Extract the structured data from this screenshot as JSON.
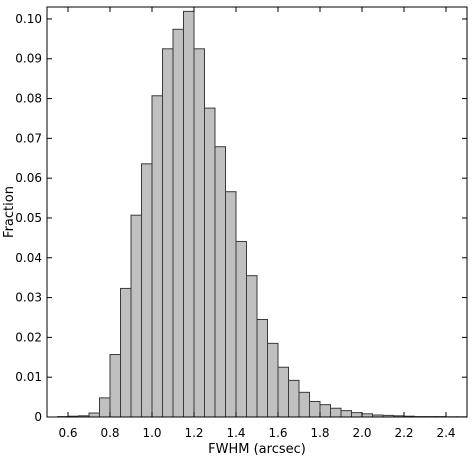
{
  "chart_data": {
    "type": "bar",
    "title": "",
    "xlabel": "FWHM (arcsec)",
    "ylabel": "Fraction",
    "xlim": [
      0.5,
      2.5
    ],
    "ylim": [
      0,
      0.103
    ],
    "bin_width": 0.05,
    "x_ticks": [
      0.6,
      0.8,
      1.0,
      1.2,
      1.4,
      1.6,
      1.8,
      2.0,
      2.2,
      2.4
    ],
    "x_tick_labels": [
      "0.6",
      "0.8",
      "1.0",
      "1.2",
      "1.4",
      "1.6",
      "1.8",
      "2.0",
      "2.2",
      "2.4"
    ],
    "y_ticks": [
      0,
      0.01,
      0.02,
      0.03,
      0.04,
      0.05,
      0.06,
      0.07,
      0.08,
      0.09,
      0.1
    ],
    "y_tick_labels": [
      "0",
      "0.01",
      "0.02",
      "0.03",
      "0.04",
      "0.05",
      "0.06",
      "0.07",
      "0.08",
      "0.09",
      "0.10"
    ],
    "grid": false,
    "legend": "none",
    "colors": {
      "bar_fill": "#c0c0c0",
      "bar_edge": "#3a3a3a",
      "axis": "#000000"
    },
    "bins": [
      {
        "x0": 0.55,
        "value": 0.0001
      },
      {
        "x0": 0.6,
        "value": 0.0002
      },
      {
        "x0": 0.65,
        "value": 0.0003
      },
      {
        "x0": 0.7,
        "value": 0.001
      },
      {
        "x0": 0.75,
        "value": 0.0048
      },
      {
        "x0": 0.8,
        "value": 0.0157
      },
      {
        "x0": 0.85,
        "value": 0.0323
      },
      {
        "x0": 0.9,
        "value": 0.0507
      },
      {
        "x0": 0.95,
        "value": 0.0636
      },
      {
        "x0": 1.0,
        "value": 0.0807
      },
      {
        "x0": 1.05,
        "value": 0.0925
      },
      {
        "x0": 1.1,
        "value": 0.0974
      },
      {
        "x0": 1.15,
        "value": 0.1019
      },
      {
        "x0": 1.2,
        "value": 0.0925
      },
      {
        "x0": 1.25,
        "value": 0.0776
      },
      {
        "x0": 1.3,
        "value": 0.0679
      },
      {
        "x0": 1.35,
        "value": 0.0566
      },
      {
        "x0": 1.4,
        "value": 0.0441
      },
      {
        "x0": 1.45,
        "value": 0.0355
      },
      {
        "x0": 1.5,
        "value": 0.0245
      },
      {
        "x0": 1.55,
        "value": 0.0185
      },
      {
        "x0": 1.6,
        "value": 0.0125
      },
      {
        "x0": 1.65,
        "value": 0.0092
      },
      {
        "x0": 1.7,
        "value": 0.0062
      },
      {
        "x0": 1.75,
        "value": 0.0039
      },
      {
        "x0": 1.8,
        "value": 0.0031
      },
      {
        "x0": 1.85,
        "value": 0.0022
      },
      {
        "x0": 1.9,
        "value": 0.0016
      },
      {
        "x0": 1.95,
        "value": 0.0011
      },
      {
        "x0": 2.0,
        "value": 0.0008
      },
      {
        "x0": 2.05,
        "value": 0.0005
      },
      {
        "x0": 2.1,
        "value": 0.0004
      },
      {
        "x0": 2.15,
        "value": 0.0003
      },
      {
        "x0": 2.2,
        "value": 0.0002
      },
      {
        "x0": 2.25,
        "value": 0.0001
      },
      {
        "x0": 2.3,
        "value": 0.0001
      },
      {
        "x0": 2.35,
        "value": 0.0001
      },
      {
        "x0": 2.4,
        "value": 5e-05
      },
      {
        "x0": 2.45,
        "value": 5e-05
      }
    ]
  }
}
